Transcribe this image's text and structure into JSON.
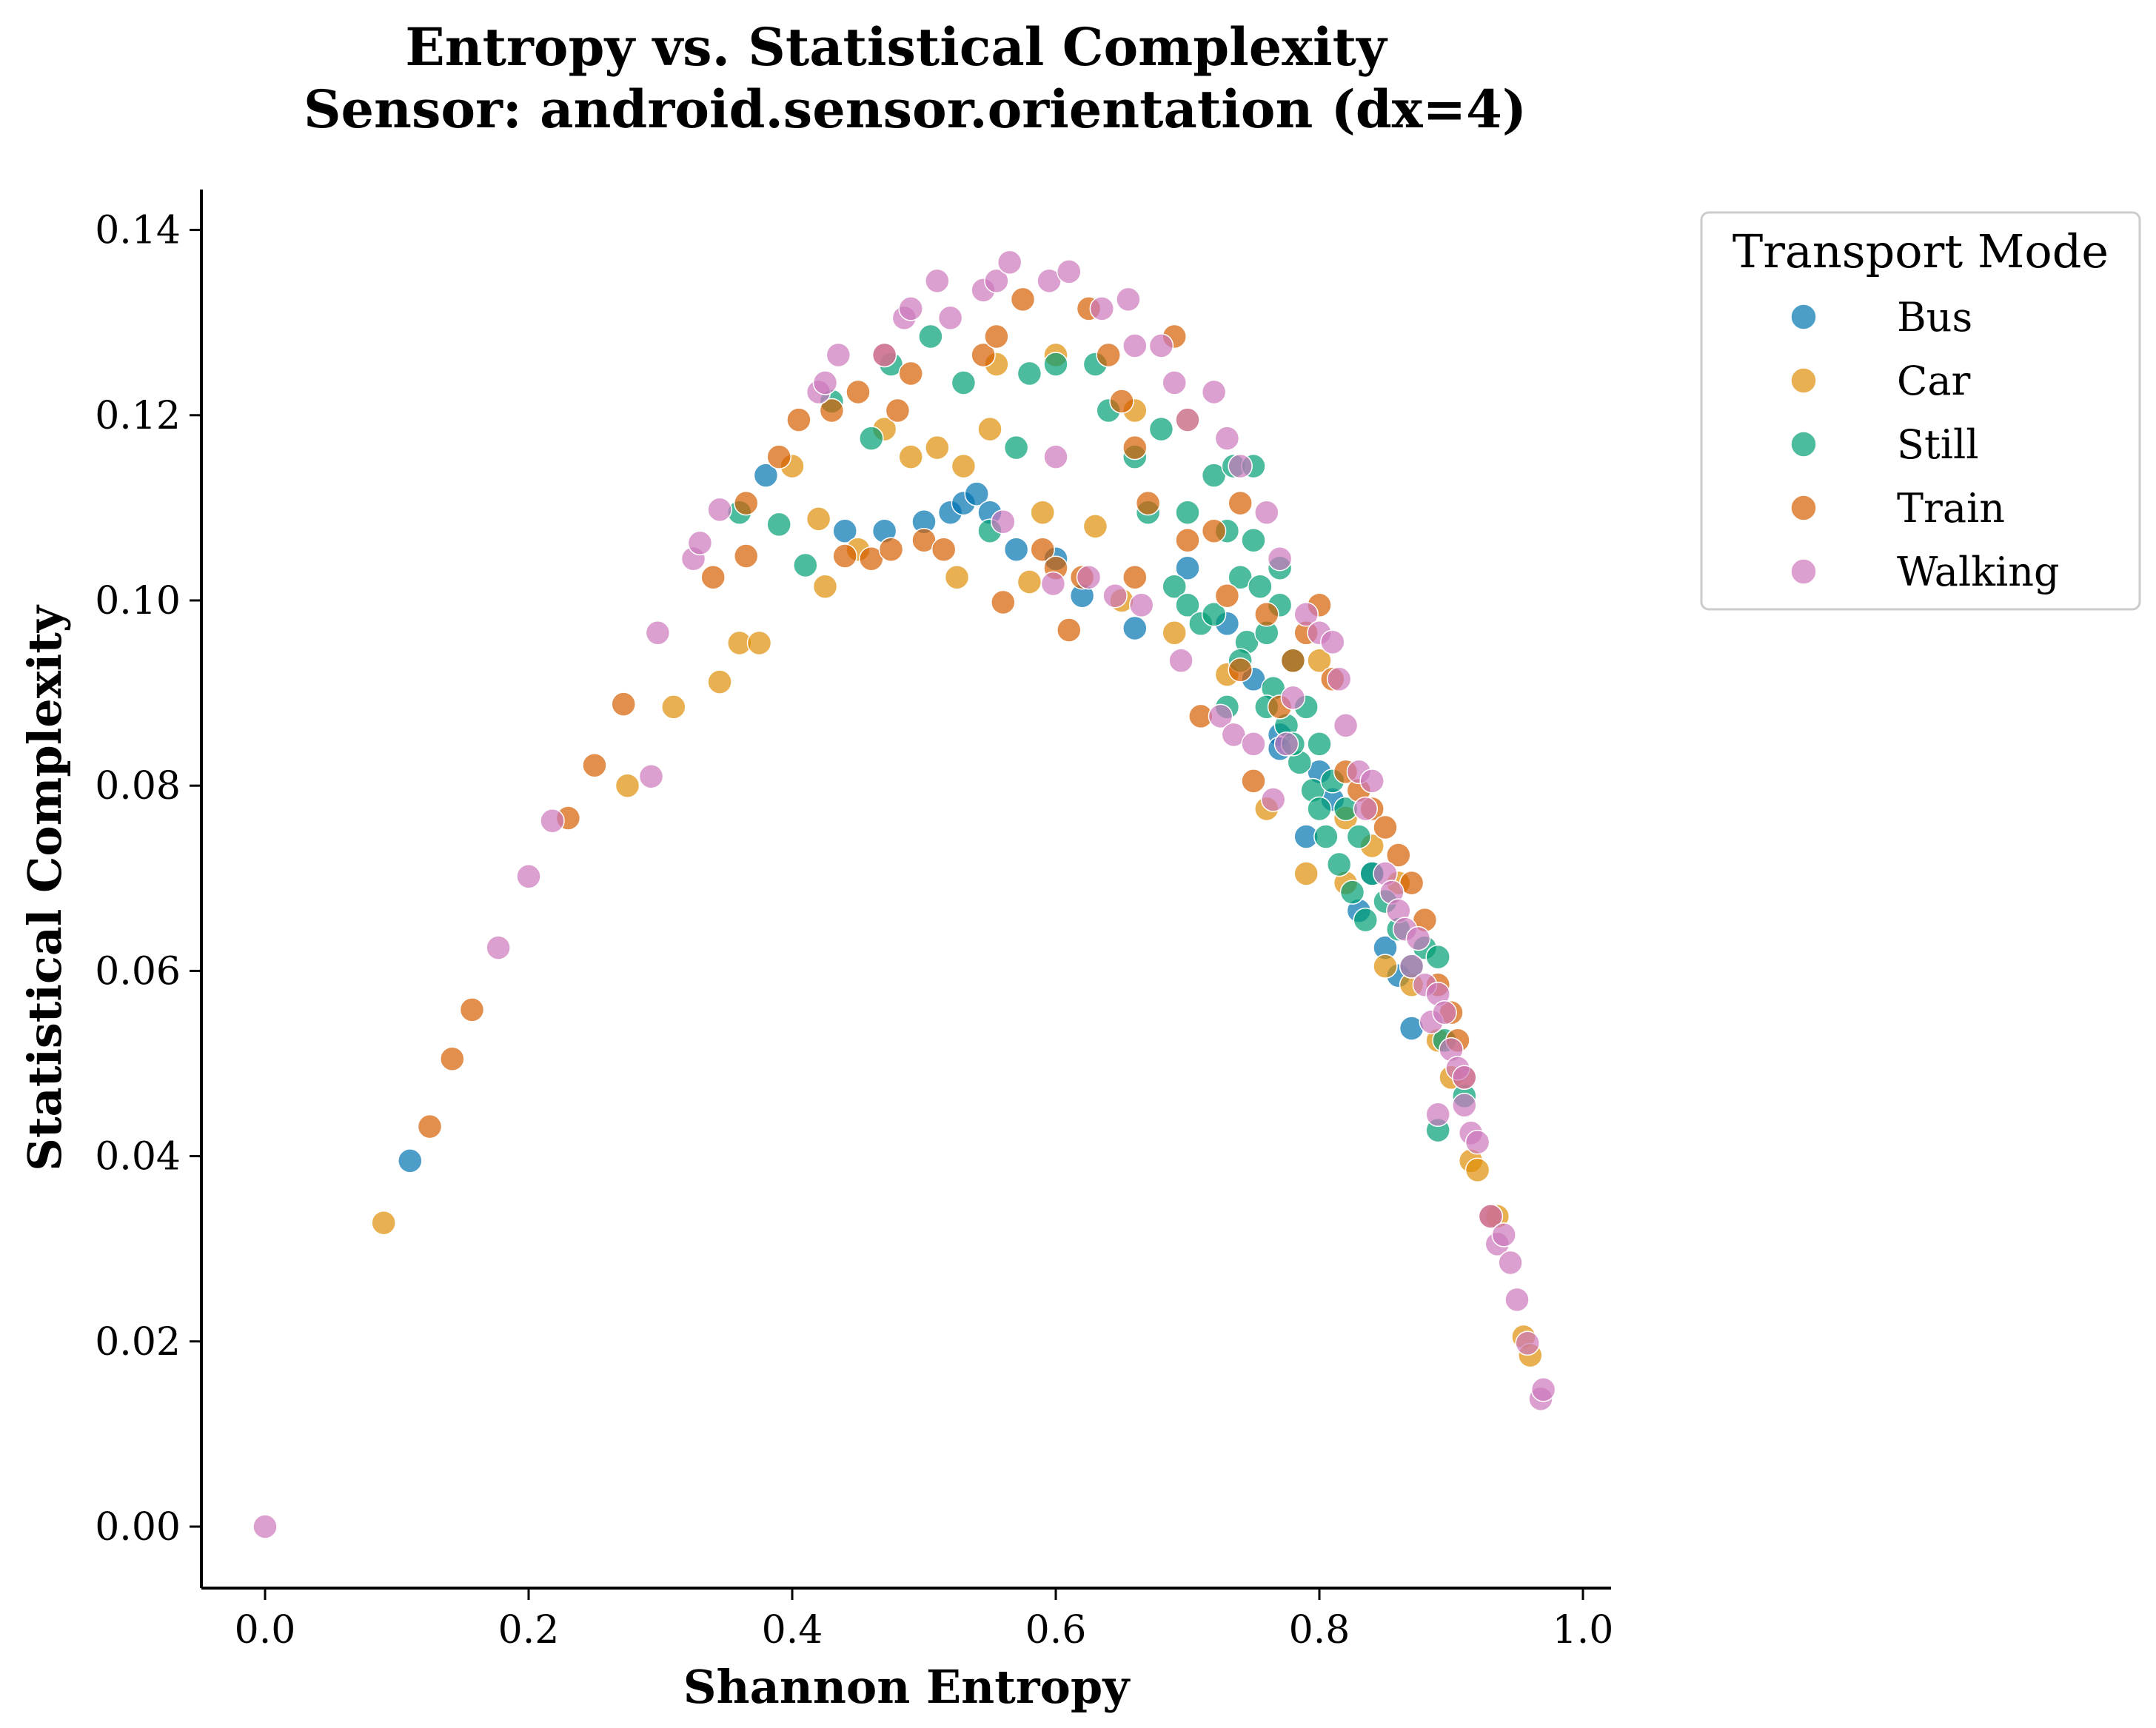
{
  "chart_data": {
    "type": "scatter",
    "title": "Entropy vs. Statistical Complexity\nSensor: android.sensor.orientation (dx=4)",
    "title_lines": [
      "Entropy vs. Statistical Complexity",
      "Sensor: android.sensor.orientation (dx=4)"
    ],
    "xlabel": "Shannon Entropy",
    "ylabel": "Statistical Complexity",
    "xlim": [
      -0.05,
      1.02
    ],
    "ylim": [
      -0.007,
      0.144
    ],
    "xticks": [
      "0.0",
      "0.2",
      "0.4",
      "0.6",
      "0.8",
      "1.0"
    ],
    "yticks": [
      "0.00",
      "0.02",
      "0.04",
      "0.06",
      "0.08",
      "0.10",
      "0.12",
      "0.14"
    ],
    "grid": false,
    "legend_position": "outside-right-top",
    "legend_title": "Transport Mode",
    "series": [
      {
        "name": "Bus",
        "color": "#0173b2",
        "points": [
          [
            0.11,
            0.0395
          ],
          [
            0.38,
            0.1135
          ],
          [
            0.44,
            0.1075
          ],
          [
            0.47,
            0.1075
          ],
          [
            0.5,
            0.1085
          ],
          [
            0.52,
            0.1095
          ],
          [
            0.53,
            0.1105
          ],
          [
            0.54,
            0.1115
          ],
          [
            0.55,
            0.1095
          ],
          [
            0.57,
            0.1055
          ],
          [
            0.6,
            0.1045
          ],
          [
            0.62,
            0.1005
          ],
          [
            0.66,
            0.097
          ],
          [
            0.7,
            0.1035
          ],
          [
            0.73,
            0.0975
          ],
          [
            0.75,
            0.0915
          ],
          [
            0.77,
            0.0855
          ],
          [
            0.79,
            0.0745
          ],
          [
            0.81,
            0.0785
          ],
          [
            0.83,
            0.0665
          ],
          [
            0.84,
            0.0705
          ],
          [
            0.85,
            0.0625
          ],
          [
            0.86,
            0.0595
          ],
          [
            0.87,
            0.0538
          ],
          [
            0.77,
            0.084
          ],
          [
            0.8,
            0.0815
          ]
        ]
      },
      {
        "name": "Car",
        "color": "#de8f05",
        "points": [
          [
            0.09,
            0.0328
          ],
          [
            0.275,
            0.08
          ],
          [
            0.31,
            0.0885
          ],
          [
            0.345,
            0.0912
          ],
          [
            0.36,
            0.0954
          ],
          [
            0.375,
            0.0954
          ],
          [
            0.4,
            0.1145
          ],
          [
            0.42,
            0.1088
          ],
          [
            0.425,
            0.1015
          ],
          [
            0.47,
            0.1185
          ],
          [
            0.49,
            0.1155
          ],
          [
            0.51,
            0.1165
          ],
          [
            0.525,
            0.1025
          ],
          [
            0.53,
            0.1145
          ],
          [
            0.55,
            0.1185
          ],
          [
            0.555,
            0.1255
          ],
          [
            0.58,
            0.102
          ],
          [
            0.59,
            0.1095
          ],
          [
            0.6,
            0.1265
          ],
          [
            0.63,
            0.108
          ],
          [
            0.65,
            0.1
          ],
          [
            0.69,
            0.0965
          ],
          [
            0.7,
            0.1195
          ],
          [
            0.73,
            0.092
          ],
          [
            0.76,
            0.0775
          ],
          [
            0.79,
            0.0705
          ],
          [
            0.82,
            0.0695
          ],
          [
            0.85,
            0.0605
          ],
          [
            0.87,
            0.0585
          ],
          [
            0.89,
            0.0525
          ],
          [
            0.9,
            0.0485
          ],
          [
            0.915,
            0.0395
          ],
          [
            0.92,
            0.0385
          ],
          [
            0.935,
            0.0335
          ],
          [
            0.955,
            0.0205
          ],
          [
            0.96,
            0.0185
          ],
          [
            0.82,
            0.0765
          ],
          [
            0.84,
            0.0735
          ],
          [
            0.86,
            0.0695
          ],
          [
            0.8,
            0.0935
          ],
          [
            0.66,
            0.1205
          ],
          [
            0.45,
            0.1055
          ]
        ]
      },
      {
        "name": "Still",
        "color": "#029e73",
        "points": [
          [
            0.41,
            0.1038
          ],
          [
            0.39,
            0.1082
          ],
          [
            0.43,
            0.1215
          ],
          [
            0.46,
            0.1175
          ],
          [
            0.475,
            0.1255
          ],
          [
            0.505,
            0.1285
          ],
          [
            0.53,
            0.1235
          ],
          [
            0.57,
            0.1165
          ],
          [
            0.58,
            0.1245
          ],
          [
            0.6,
            0.1255
          ],
          [
            0.63,
            0.1255
          ],
          [
            0.64,
            0.1205
          ],
          [
            0.66,
            0.1155
          ],
          [
            0.67,
            0.1095
          ],
          [
            0.68,
            0.1185
          ],
          [
            0.69,
            0.1015
          ],
          [
            0.7,
            0.0995
          ],
          [
            0.71,
            0.0975
          ],
          [
            0.72,
            0.1135
          ],
          [
            0.73,
            0.1075
          ],
          [
            0.735,
            0.1145
          ],
          [
            0.74,
            0.1025
          ],
          [
            0.745,
            0.0955
          ],
          [
            0.75,
            0.1065
          ],
          [
            0.755,
            0.1015
          ],
          [
            0.76,
            0.0965
          ],
          [
            0.765,
            0.0905
          ],
          [
            0.77,
            0.0995
          ],
          [
            0.775,
            0.0865
          ],
          [
            0.78,
            0.0935
          ],
          [
            0.785,
            0.0825
          ],
          [
            0.79,
            0.0885
          ],
          [
            0.795,
            0.0795
          ],
          [
            0.8,
            0.0845
          ],
          [
            0.805,
            0.0745
          ],
          [
            0.81,
            0.0805
          ],
          [
            0.815,
            0.0715
          ],
          [
            0.82,
            0.0775
          ],
          [
            0.825,
            0.0685
          ],
          [
            0.83,
            0.0745
          ],
          [
            0.835,
            0.0655
          ],
          [
            0.84,
            0.0705
          ],
          [
            0.85,
            0.0675
          ],
          [
            0.86,
            0.0645
          ],
          [
            0.87,
            0.0605
          ],
          [
            0.88,
            0.0625
          ],
          [
            0.89,
            0.0615
          ],
          [
            0.895,
            0.0525
          ],
          [
            0.89,
            0.0428
          ],
          [
            0.91,
            0.0465
          ],
          [
            0.7,
            0.1095
          ],
          [
            0.72,
            0.0985
          ],
          [
            0.74,
            0.0935
          ],
          [
            0.76,
            0.0885
          ],
          [
            0.78,
            0.0845
          ],
          [
            0.8,
            0.0775
          ],
          [
            0.75,
            0.1145
          ],
          [
            0.77,
            0.1035
          ],
          [
            0.73,
            0.0885
          ],
          [
            0.55,
            0.1075
          ],
          [
            0.36,
            0.1095
          ]
        ]
      },
      {
        "name": "Train",
        "color": "#d55e00",
        "points": [
          [
            0.125,
            0.0432
          ],
          [
            0.142,
            0.0505
          ],
          [
            0.157,
            0.0558
          ],
          [
            0.23,
            0.0765
          ],
          [
            0.25,
            0.0822
          ],
          [
            0.272,
            0.0888
          ],
          [
            0.34,
            0.1025
          ],
          [
            0.365,
            0.1105
          ],
          [
            0.365,
            0.1048
          ],
          [
            0.39,
            0.1155
          ],
          [
            0.405,
            0.1195
          ],
          [
            0.43,
            0.1205
          ],
          [
            0.44,
            0.1048
          ],
          [
            0.45,
            0.1225
          ],
          [
            0.46,
            0.1045
          ],
          [
            0.47,
            0.1265
          ],
          [
            0.475,
            0.1055
          ],
          [
            0.48,
            0.1205
          ],
          [
            0.49,
            0.1245
          ],
          [
            0.5,
            0.1065
          ],
          [
            0.515,
            0.1055
          ],
          [
            0.545,
            0.1265
          ],
          [
            0.555,
            0.1285
          ],
          [
            0.56,
            0.0998
          ],
          [
            0.575,
            0.1325
          ],
          [
            0.59,
            0.1055
          ],
          [
            0.6,
            0.1035
          ],
          [
            0.61,
            0.0968
          ],
          [
            0.62,
            0.1025
          ],
          [
            0.625,
            0.1315
          ],
          [
            0.64,
            0.1265
          ],
          [
            0.65,
            0.1215
          ],
          [
            0.66,
            0.1025
          ],
          [
            0.67,
            0.1105
          ],
          [
            0.69,
            0.1285
          ],
          [
            0.7,
            0.1065
          ],
          [
            0.72,
            0.1075
          ],
          [
            0.73,
            0.1005
          ],
          [
            0.74,
            0.0925
          ],
          [
            0.75,
            0.0805
          ],
          [
            0.76,
            0.0985
          ],
          [
            0.77,
            0.0885
          ],
          [
            0.78,
            0.0935
          ],
          [
            0.79,
            0.0965
          ],
          [
            0.8,
            0.0995
          ],
          [
            0.81,
            0.0915
          ],
          [
            0.82,
            0.0815
          ],
          [
            0.83,
            0.0795
          ],
          [
            0.84,
            0.0775
          ],
          [
            0.85,
            0.0755
          ],
          [
            0.86,
            0.0725
          ],
          [
            0.87,
            0.0695
          ],
          [
            0.88,
            0.0655
          ],
          [
            0.89,
            0.0585
          ],
          [
            0.9,
            0.0555
          ],
          [
            0.905,
            0.0525
          ],
          [
            0.91,
            0.0485
          ],
          [
            0.93,
            0.0335
          ],
          [
            0.71,
            0.0875
          ],
          [
            0.74,
            0.1105
          ],
          [
            0.66,
            0.1165
          ]
        ]
      },
      {
        "name": "Walking",
        "color": "#cc78bc",
        "points": [
          [
            0.0,
            0.0
          ],
          [
            0.177,
            0.0625
          ],
          [
            0.2,
            0.0702
          ],
          [
            0.218,
            0.0762
          ],
          [
            0.293,
            0.081
          ],
          [
            0.298,
            0.0965
          ],
          [
            0.325,
            0.1045
          ],
          [
            0.33,
            0.1062
          ],
          [
            0.345,
            0.1098
          ],
          [
            0.42,
            0.1225
          ],
          [
            0.425,
            0.1235
          ],
          [
            0.435,
            0.1265
          ],
          [
            0.47,
            0.1265
          ],
          [
            0.485,
            0.1305
          ],
          [
            0.49,
            0.1315
          ],
          [
            0.51,
            0.1345
          ],
          [
            0.52,
            0.1305
          ],
          [
            0.545,
            0.1335
          ],
          [
            0.555,
            0.1345
          ],
          [
            0.56,
            0.1085
          ],
          [
            0.565,
            0.1365
          ],
          [
            0.595,
            0.1345
          ],
          [
            0.598,
            0.1018
          ],
          [
            0.6,
            0.1155
          ],
          [
            0.61,
            0.1355
          ],
          [
            0.625,
            0.1025
          ],
          [
            0.635,
            0.1315
          ],
          [
            0.645,
            0.1005
          ],
          [
            0.655,
            0.1325
          ],
          [
            0.66,
            0.1275
          ],
          [
            0.665,
            0.0995
          ],
          [
            0.68,
            0.1275
          ],
          [
            0.69,
            0.1235
          ],
          [
            0.695,
            0.0935
          ],
          [
            0.7,
            0.1195
          ],
          [
            0.72,
            0.1225
          ],
          [
            0.725,
            0.0875
          ],
          [
            0.73,
            0.1175
          ],
          [
            0.735,
            0.0855
          ],
          [
            0.74,
            0.1145
          ],
          [
            0.75,
            0.0845
          ],
          [
            0.76,
            0.1095
          ],
          [
            0.765,
            0.0785
          ],
          [
            0.77,
            0.1045
          ],
          [
            0.775,
            0.0845
          ],
          [
            0.78,
            0.0895
          ],
          [
            0.79,
            0.0985
          ],
          [
            0.8,
            0.0965
          ],
          [
            0.81,
            0.0955
          ],
          [
            0.815,
            0.0915
          ],
          [
            0.82,
            0.0865
          ],
          [
            0.83,
            0.0815
          ],
          [
            0.835,
            0.0775
          ],
          [
            0.84,
            0.0805
          ],
          [
            0.85,
            0.0705
          ],
          [
            0.855,
            0.0685
          ],
          [
            0.86,
            0.0665
          ],
          [
            0.865,
            0.0645
          ],
          [
            0.87,
            0.0605
          ],
          [
            0.875,
            0.0635
          ],
          [
            0.88,
            0.0585
          ],
          [
            0.885,
            0.0545
          ],
          [
            0.89,
            0.0575
          ],
          [
            0.895,
            0.0555
          ],
          [
            0.9,
            0.0515
          ],
          [
            0.905,
            0.0495
          ],
          [
            0.91,
            0.0485
          ],
          [
            0.915,
            0.0425
          ],
          [
            0.92,
            0.0415
          ],
          [
            0.93,
            0.0335
          ],
          [
            0.935,
            0.0305
          ],
          [
            0.94,
            0.0315
          ],
          [
            0.945,
            0.0285
          ],
          [
            0.95,
            0.0245
          ],
          [
            0.958,
            0.0198
          ],
          [
            0.968,
            0.0138
          ],
          [
            0.97,
            0.0148
          ],
          [
            0.89,
            0.0445
          ],
          [
            0.91,
            0.0455
          ]
        ]
      }
    ]
  }
}
